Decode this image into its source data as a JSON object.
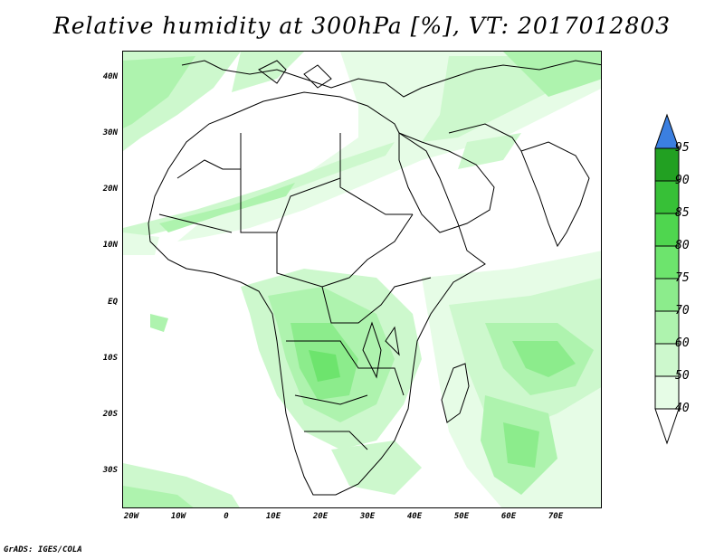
{
  "title": "Relative humidity at 300hPa [%], VT: 2017012803",
  "credit": "GrADS: IGES/COLA",
  "map": {
    "lat_labels": [
      "40N",
      "30N",
      "20N",
      "10N",
      "EQ",
      "10S",
      "20S",
      "30S"
    ],
    "lon_labels": [
      "20W",
      "10W",
      "0",
      "10E",
      "20E",
      "30E",
      "40E",
      "50E",
      "60E",
      "70E"
    ],
    "land_outline_color": "#000000",
    "background_color": "#ffffff"
  },
  "colorbar": {
    "levels": [
      "95",
      "90",
      "85",
      "80",
      "75",
      "70",
      "60",
      "50",
      "40"
    ],
    "colors": {
      ">95": "#3b7fe0",
      "90-95": "#22a022",
      "85-90": "#37c037",
      "80-85": "#4fd64f",
      "75-80": "#6de46d",
      "70-75": "#8cec8c",
      "60-70": "#aef3ae",
      "50-60": "#cdf8cd",
      "40-50": "#e6fce6",
      "<40": "#ffffff"
    }
  }
}
